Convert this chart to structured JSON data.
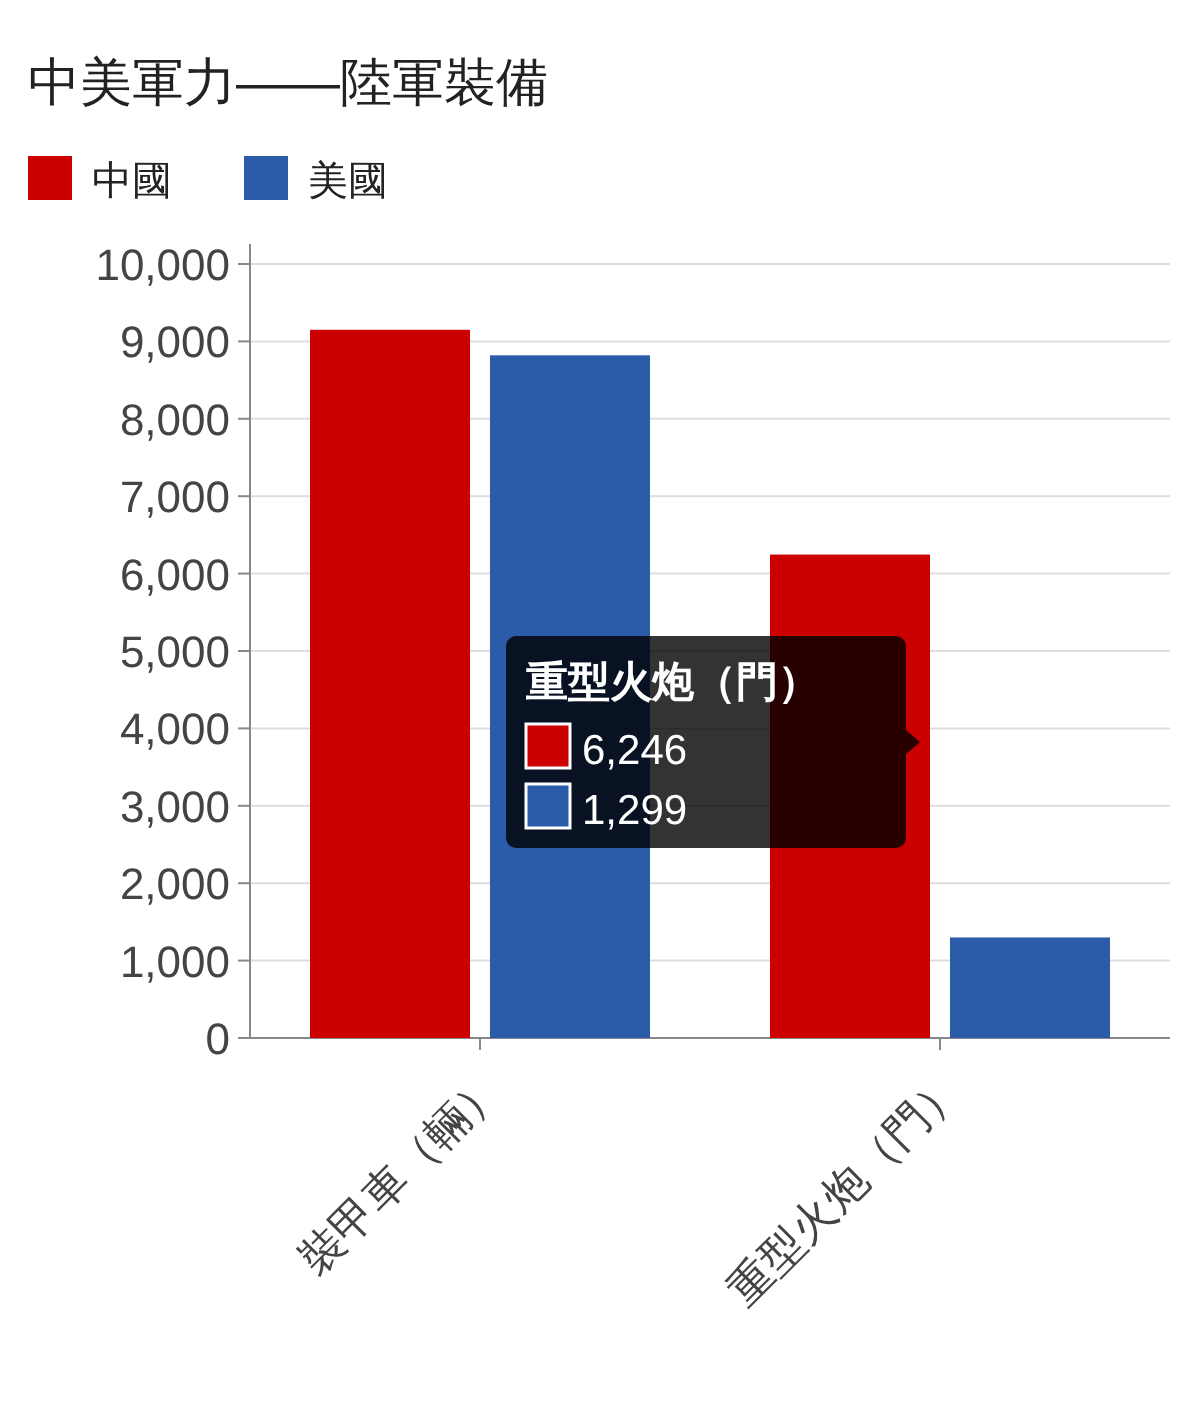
{
  "chart_data": {
    "type": "bar",
    "title": "中美軍力——陸軍裝備",
    "categories": [
      "裝甲車（輛）",
      "重型火炮（門）"
    ],
    "series": [
      {
        "name": "中國",
        "color": "#cc0000",
        "values": [
          9150,
          6246
        ]
      },
      {
        "name": "美國",
        "color": "#2a5caa",
        "values": [
          8820,
          1299
        ]
      }
    ],
    "annotations": [
      "重型火炮（門）",
      "6,246",
      "1,299"
    ],
    "ylim": [
      0,
      10000
    ],
    "yticks": [
      {
        "value": 0,
        "label": "0"
      },
      {
        "value": 1000,
        "label": "1,000"
      },
      {
        "value": 2000,
        "label": "2,000"
      },
      {
        "value": 3000,
        "label": "3,000"
      },
      {
        "value": 4000,
        "label": "4,000"
      },
      {
        "value": 5000,
        "label": "5,000"
      },
      {
        "value": 6000,
        "label": "6,000"
      },
      {
        "value": 7000,
        "label": "7,000"
      },
      {
        "value": 8000,
        "label": "8,000"
      },
      {
        "value": 9000,
        "label": "9,000"
      },
      {
        "value": 10000,
        "label": "10,000"
      }
    ],
    "grid": "y",
    "legend": "top left"
  }
}
